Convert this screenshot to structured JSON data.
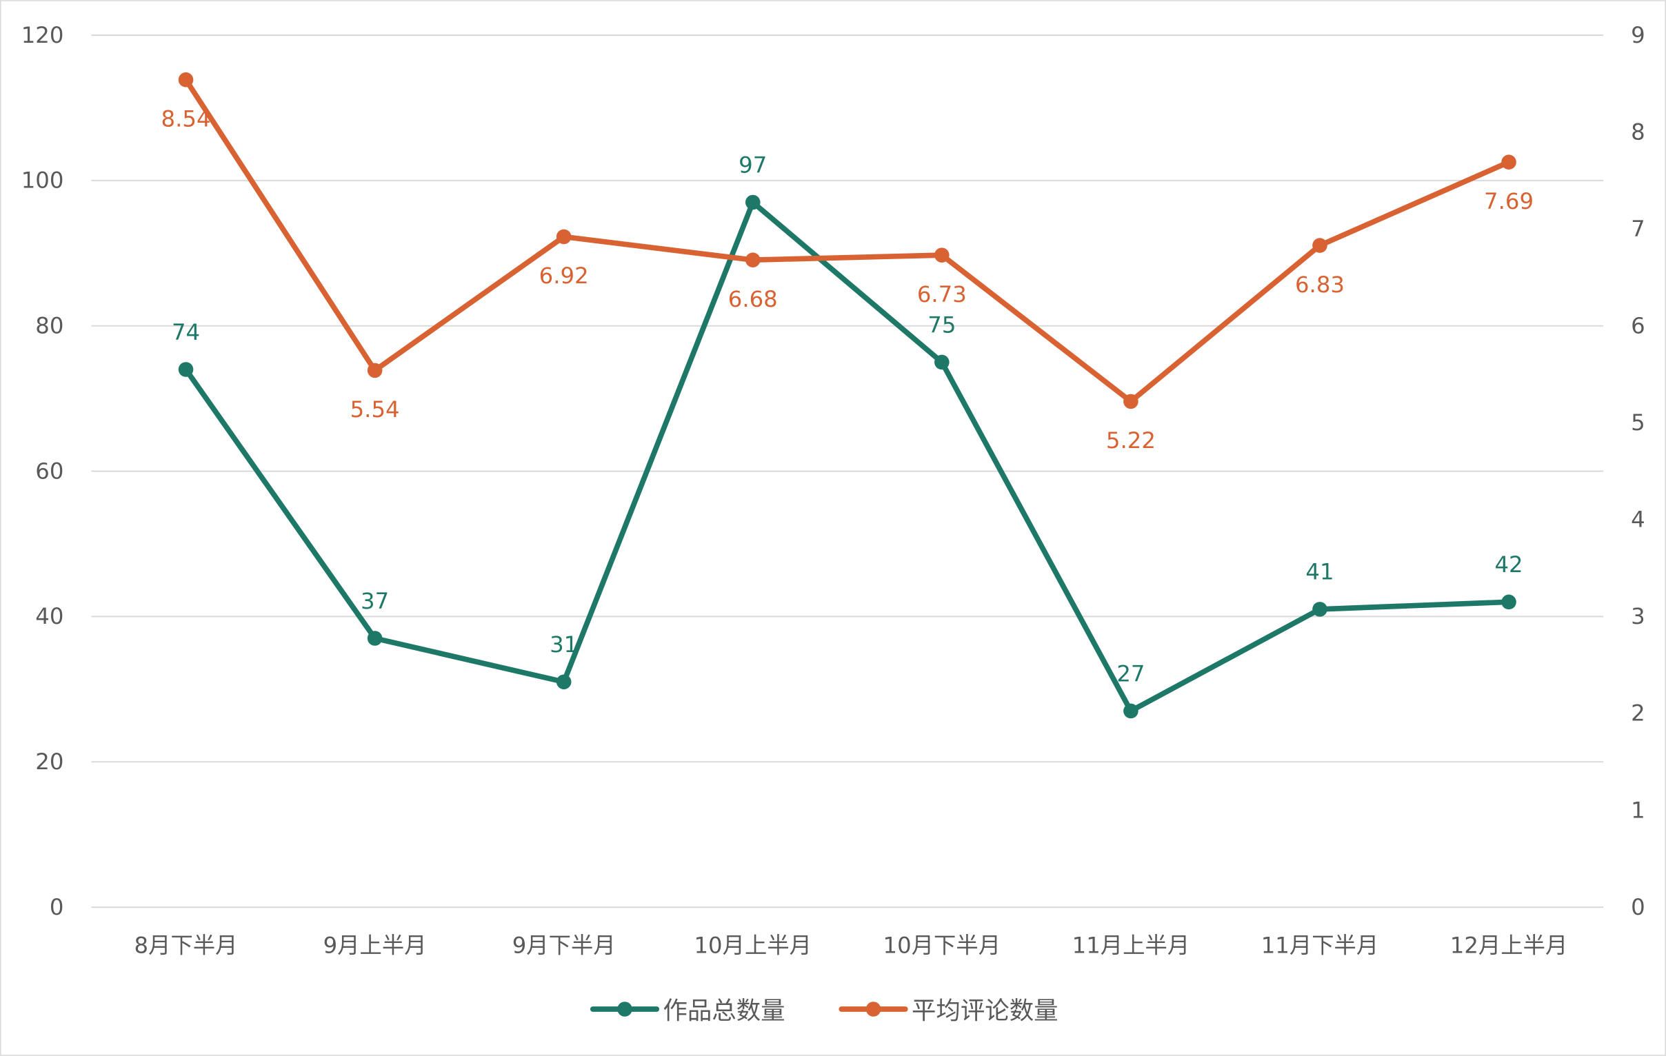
{
  "chart_data": {
    "type": "line",
    "title": "",
    "categories": [
      "8月下半月",
      "9月上半月",
      "9月下半月",
      "10月上半月",
      "10月下半月",
      "11月上半月",
      "11月下半月",
      "12月上半月"
    ],
    "series": [
      {
        "name": "作品总数量",
        "axis": "left",
        "color": "#1e7868",
        "values": [
          74,
          37,
          31,
          97,
          75,
          27,
          41,
          42
        ],
        "label_position": "above"
      },
      {
        "name": "平均评论数量",
        "axis": "right",
        "color": "#d86232",
        "values": [
          8.54,
          5.54,
          6.92,
          6.68,
          6.73,
          5.22,
          6.83,
          7.69
        ],
        "label_position": "below"
      }
    ],
    "y_left": {
      "ylim": [
        0,
        120
      ],
      "ticks": [
        0,
        20,
        40,
        60,
        80,
        100,
        120
      ]
    },
    "y_right": {
      "ylim": [
        0,
        9
      ],
      "ticks": [
        0,
        1,
        2,
        3,
        4,
        5,
        6,
        7,
        8,
        9
      ]
    },
    "grid": true,
    "legend_placement": "bottom"
  }
}
